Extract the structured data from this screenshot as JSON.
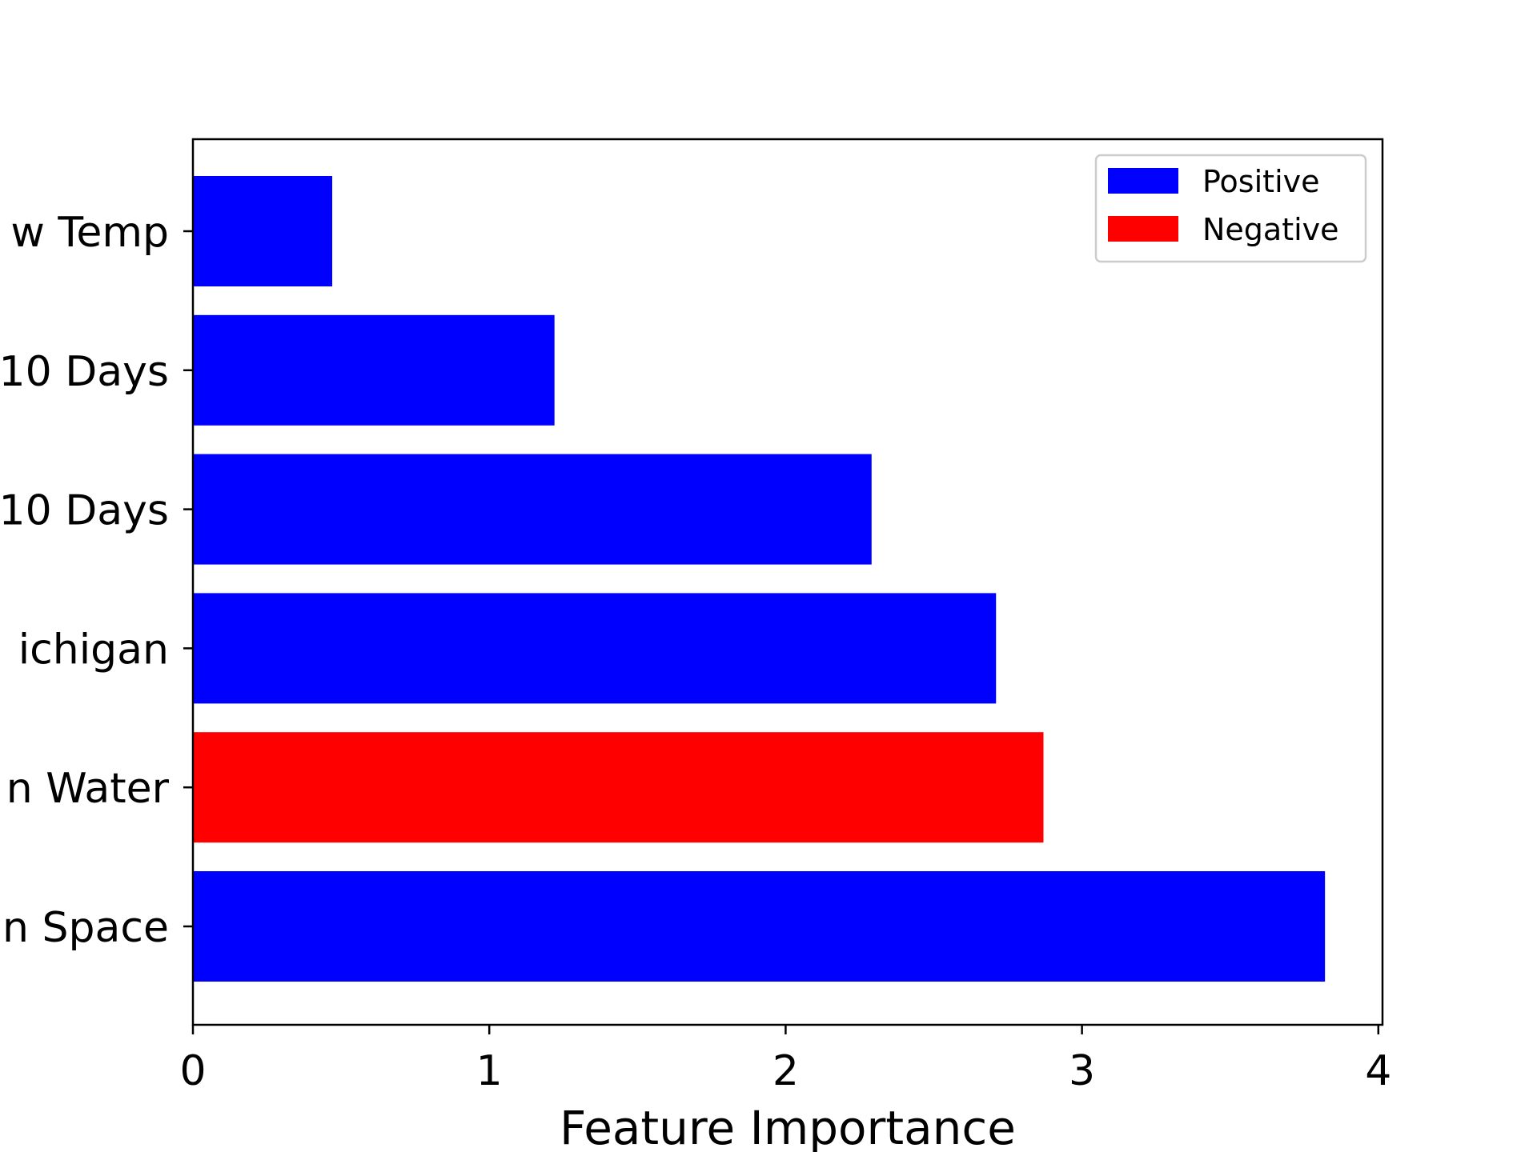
{
  "chart_data": {
    "type": "bar",
    "orientation": "horizontal",
    "xlabel": "Feature Importance",
    "ylabel": "",
    "xlim": [
      0,
      4
    ],
    "xticks": [
      "0",
      "1",
      "2",
      "3",
      "4"
    ],
    "categories": [
      "n Space",
      "n Water",
      "ichigan",
      "10 Days",
      "10 Days",
      "w Temp"
    ],
    "values": [
      3.82,
      2.87,
      2.71,
      2.29,
      1.22,
      0.47
    ],
    "signs": [
      "Positive",
      "Negative",
      "Positive",
      "Positive",
      "Positive",
      "Positive"
    ],
    "grid": false,
    "legend_position": "top-right",
    "legend": [
      {
        "label": "Positive",
        "color": "#0000ff"
      },
      {
        "label": "Negative",
        "color": "#ff0000"
      }
    ]
  }
}
